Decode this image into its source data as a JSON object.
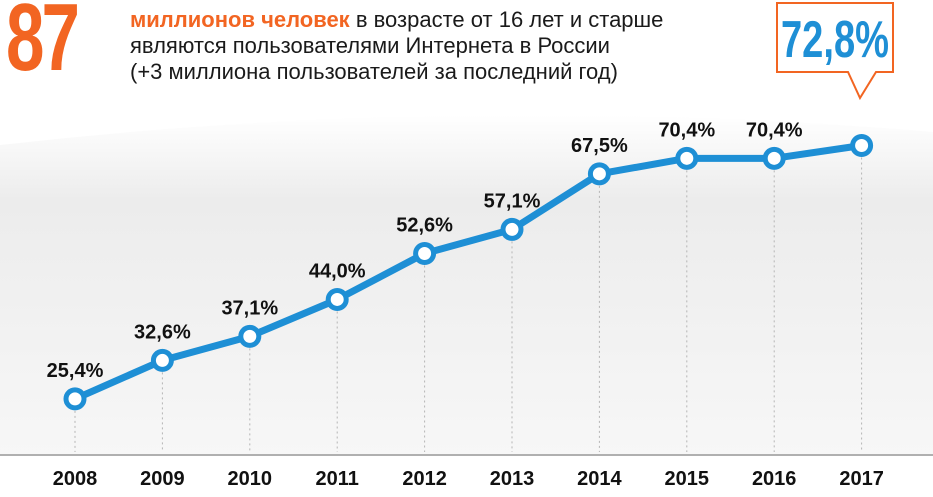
{
  "header": {
    "big_number": "87",
    "line1_highlight": "миллионов человек",
    "line1_rest": " в возрасте от 16 лет и старше",
    "line2": "являются пользователями Интернета в России",
    "line3": "(+3 миллиона пользователей за последний год)"
  },
  "callout": {
    "value": "72,8%"
  },
  "colors": {
    "accent_orange": "#F26522",
    "line_blue": "#1E8FD5",
    "text_dark": "#111111",
    "grid_gray": "#b5b5b5"
  },
  "chart_data": {
    "type": "line",
    "categories": [
      "2008",
      "2009",
      "2010",
      "2011",
      "2012",
      "2013",
      "2014",
      "2015",
      "2016",
      "2017"
    ],
    "values": [
      25.4,
      32.6,
      37.1,
      44.0,
      52.6,
      57.1,
      67.5,
      70.4,
      70.4,
      72.8
    ],
    "data_labels": [
      "25,4%",
      "32,6%",
      "37,1%",
      "44,0%",
      "52,6%",
      "57,1%",
      "67,5%",
      "70,4%",
      "70,4%",
      ""
    ],
    "highlighted_value_label": "72,8%",
    "ylim": [
      20,
      80
    ],
    "grid": "vertical dotted lines at each year",
    "title": "",
    "xlabel": "",
    "ylabel": ""
  }
}
